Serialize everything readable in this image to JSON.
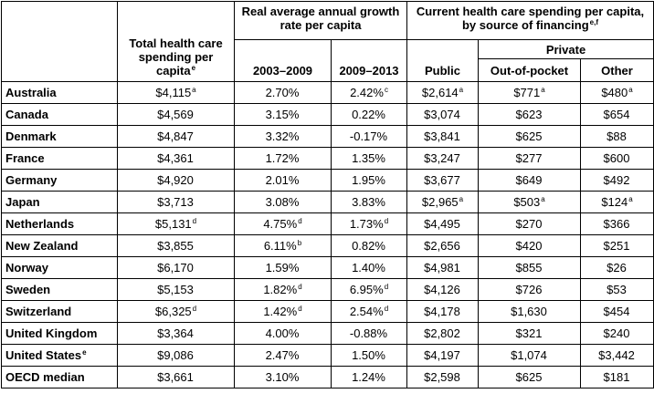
{
  "headers": {
    "total": "Total health care spending per capita",
    "total_sup": "e",
    "growth_group": "Real average annual growth rate per capita",
    "growth_a": "2003–2009",
    "growth_b": "2009–2013",
    "current_group": "Current health care spending per capita, by source of financing",
    "current_sup": "e,f",
    "private_group": "Private",
    "public": "Public",
    "oop": "Out-of-pocket",
    "other": "Other"
  },
  "rows": [
    {
      "country": "Australia",
      "country_sup": "",
      "total": "$4,115",
      "total_sup": "a",
      "g1": "2.70%",
      "g1_sup": "",
      "g2": "2.42%",
      "g2_sup": "c",
      "public": "$2,614",
      "public_sup": "a",
      "oop": "$771",
      "oop_sup": "a",
      "other": "$480",
      "other_sup": "a"
    },
    {
      "country": "Canada",
      "country_sup": "",
      "total": "$4,569",
      "total_sup": "",
      "g1": "3.15%",
      "g1_sup": "",
      "g2": "0.22%",
      "g2_sup": "",
      "public": "$3,074",
      "public_sup": "",
      "oop": "$623",
      "oop_sup": "",
      "other": "$654",
      "other_sup": ""
    },
    {
      "country": "Denmark",
      "country_sup": "",
      "total": "$4,847",
      "total_sup": "",
      "g1": "3.32%",
      "g1_sup": "",
      "g2": "-0.17%",
      "g2_sup": "",
      "public": "$3,841",
      "public_sup": "",
      "oop": "$625",
      "oop_sup": "",
      "other": "$88",
      "other_sup": ""
    },
    {
      "country": "France",
      "country_sup": "",
      "total": "$4,361",
      "total_sup": "",
      "g1": "1.72%",
      "g1_sup": "",
      "g2": "1.35%",
      "g2_sup": "",
      "public": "$3,247",
      "public_sup": "",
      "oop": "$277",
      "oop_sup": "",
      "other": "$600",
      "other_sup": ""
    },
    {
      "country": "Germany",
      "country_sup": "",
      "total": "$4,920",
      "total_sup": "",
      "g1": "2.01%",
      "g1_sup": "",
      "g2": "1.95%",
      "g2_sup": "",
      "public": "$3,677",
      "public_sup": "",
      "oop": "$649",
      "oop_sup": "",
      "other": "$492",
      "other_sup": ""
    },
    {
      "country": "Japan",
      "country_sup": "",
      "total": "$3,713",
      "total_sup": "",
      "g1": "3.08%",
      "g1_sup": "",
      "g2": "3.83%",
      "g2_sup": "",
      "public": "$2,965",
      "public_sup": "a",
      "oop": "$503",
      "oop_sup": "a",
      "other": "$124",
      "other_sup": "a"
    },
    {
      "country": "Netherlands",
      "country_sup": "",
      "total": "$5,131",
      "total_sup": "d",
      "g1": "4.75%",
      "g1_sup": "d",
      "g2": "1.73%",
      "g2_sup": "d",
      "public": "$4,495",
      "public_sup": "",
      "oop": "$270",
      "oop_sup": "",
      "other": "$366",
      "other_sup": ""
    },
    {
      "country": "New Zealand",
      "country_sup": "",
      "total": "$3,855",
      "total_sup": "",
      "g1": "6.11%",
      "g1_sup": "b",
      "g2": "0.82%",
      "g2_sup": "",
      "public": "$2,656",
      "public_sup": "",
      "oop": "$420",
      "oop_sup": "",
      "other": "$251",
      "other_sup": ""
    },
    {
      "country": "Norway",
      "country_sup": "",
      "total": "$6,170",
      "total_sup": "",
      "g1": "1.59%",
      "g1_sup": "",
      "g2": "1.40%",
      "g2_sup": "",
      "public": "$4,981",
      "public_sup": "",
      "oop": "$855",
      "oop_sup": "",
      "other": "$26",
      "other_sup": ""
    },
    {
      "country": "Sweden",
      "country_sup": "",
      "total": "$5,153",
      "total_sup": "",
      "g1": "1.82%",
      "g1_sup": "d",
      "g2": "6.95%",
      "g2_sup": "d",
      "public": "$4,126",
      "public_sup": "",
      "oop": "$726",
      "oop_sup": "",
      "other": "$53",
      "other_sup": ""
    },
    {
      "country": "Switzerland",
      "country_sup": "",
      "total": "$6,325",
      "total_sup": "d",
      "g1": "1.42%",
      "g1_sup": "d",
      "g2": "2.54%",
      "g2_sup": "d",
      "public": "$4,178",
      "public_sup": "",
      "oop": "$1,630",
      "oop_sup": "",
      "other": "$454",
      "other_sup": ""
    },
    {
      "country": "United Kingdom",
      "country_sup": "",
      "total": "$3,364",
      "total_sup": "",
      "g1": "4.00%",
      "g1_sup": "",
      "g2": "-0.88%",
      "g2_sup": "",
      "public": "$2,802",
      "public_sup": "",
      "oop": "$321",
      "oop_sup": "",
      "other": "$240",
      "other_sup": ""
    },
    {
      "country": "United States",
      "country_sup": "e",
      "total": "$9,086",
      "total_sup": "",
      "g1": "2.47%",
      "g1_sup": "",
      "g2": "1.50%",
      "g2_sup": "",
      "public": "$4,197",
      "public_sup": "",
      "oop": "$1,074",
      "oop_sup": "",
      "other": "$3,442",
      "other_sup": ""
    },
    {
      "country": "OECD median",
      "country_sup": "",
      "total": "$3,661",
      "total_sup": "",
      "g1": "3.10%",
      "g1_sup": "",
      "g2": "1.24%",
      "g2_sup": "",
      "public": "$2,598",
      "public_sup": "",
      "oop": "$625",
      "oop_sup": "",
      "other": "$181",
      "other_sup": ""
    }
  ]
}
